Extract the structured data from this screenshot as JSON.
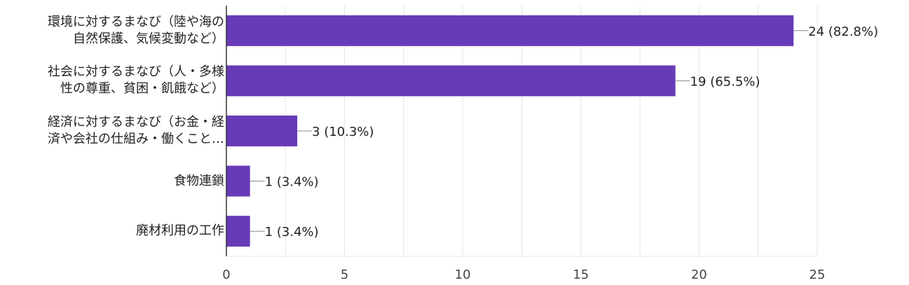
{
  "chart_data": {
    "type": "bar",
    "orientation": "horizontal",
    "categories": [
      [
        "環境に対するまなび（陸や海の",
        "自然保護、気候変動など）"
      ],
      [
        "社会に対するまなび（人・多様",
        "性の尊重、貧困・飢餓など）"
      ],
      [
        "経済に対するまなび（お金・経",
        "済や会社の仕組み・働くこと…"
      ],
      [
        "食物連鎖"
      ],
      [
        "廃材利用の工作"
      ]
    ],
    "values": [
      24,
      19,
      3,
      1,
      1
    ],
    "data_labels": [
      "24 (82.8%)",
      "19 (65.5%)",
      "3 (10.3%)",
      "1 (3.4%)",
      "1 (3.4%)"
    ],
    "xlim": [
      0,
      25
    ],
    "xticks": [
      0,
      5,
      10,
      15,
      20,
      25
    ],
    "grid": true,
    "bar_color": "#673ab7",
    "grid_color": "#e6e6e6",
    "axis_color": "#333333",
    "text_color": "#222222"
  }
}
